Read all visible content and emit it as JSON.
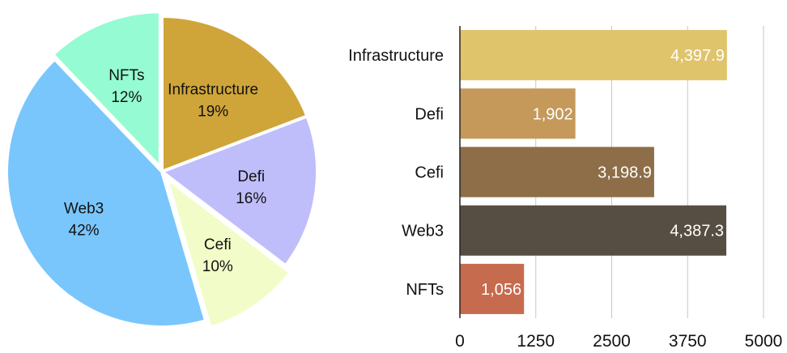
{
  "chart_data": [
    {
      "type": "pie",
      "title": "",
      "slices": [
        {
          "label": "Infrastructure",
          "percent_label": "19%",
          "value": 19,
          "color": "#cfa53a"
        },
        {
          "label": "Defi",
          "percent_label": "16%",
          "value": 16,
          "color": "#c0bdfb"
        },
        {
          "label": "Cefi",
          "percent_label": "10%",
          "value": 10,
          "color": "#f2fcc8"
        },
        {
          "label": "Web3",
          "percent_label": "42%",
          "value": 42,
          "color": "#79c6fd"
        },
        {
          "label": "NFTs",
          "percent_label": "12%",
          "value": 12,
          "color": "#95fbd2"
        }
      ]
    },
    {
      "type": "bar",
      "orientation": "horizontal",
      "title": "",
      "xlabel": "",
      "ylabel": "",
      "categories": [
        "Infrastructure",
        "Defi",
        "Cefi",
        "Web3",
        "NFTs"
      ],
      "values": [
        4397.9,
        1902,
        3198.9,
        4387.3,
        1056
      ],
      "value_labels": [
        "4,397.9",
        "1,902",
        "3,198.9",
        "4,387.3",
        "1,056"
      ],
      "colors": [
        "#e0c46c",
        "#c5995a",
        "#8d6e48",
        "#564e42",
        "#c76b4f"
      ],
      "xlim": [
        0,
        5000
      ],
      "xticks": [
        0,
        1250,
        2500,
        3750,
        5000
      ],
      "xtick_labels": [
        "0",
        "1250",
        "2500",
        "3750",
        "5000"
      ],
      "grid": "vertical"
    }
  ]
}
